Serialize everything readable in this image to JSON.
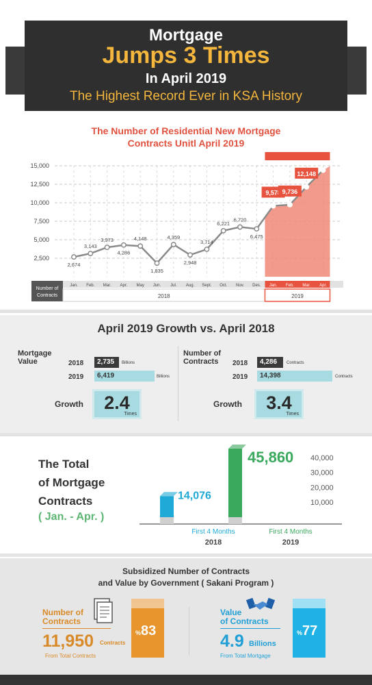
{
  "header": {
    "line1": "Mortgage",
    "line2": "Jumps 3 Times",
    "line3": "In April 2019",
    "line4": "The Highest Record Ever in KSA History"
  },
  "chart_data": {
    "type": "line",
    "title": "The Number of Residential New Mortgage Contracts Unitl April 2019",
    "xlabel": "Number of Contracts",
    "ylabel": "",
    "ylim": [
      0,
      15000
    ],
    "yticks": [
      2500,
      5000,
      7500,
      10000,
      12500,
      15000
    ],
    "ytick_labels": [
      "2,500",
      "5,000",
      "7,500",
      "10,000",
      "12,500",
      "15,000"
    ],
    "categories": [
      "Jan.",
      "Feb.",
      "Mar.",
      "Apr.",
      "May",
      "Jun.",
      "Jul.",
      "Aug.",
      "Sept.",
      "Oct.",
      "Nov.",
      "Des.",
      "Jan.",
      "Feb.",
      "Mar.",
      "Apr."
    ],
    "groups": [
      {
        "label": "2018",
        "count": 12
      },
      {
        "label": "2019",
        "count": 4
      }
    ],
    "values": [
      2674,
      3143,
      3973,
      4286,
      4148,
      1835,
      4359,
      2948,
      3714,
      6221,
      6720,
      6475,
      9578,
      9736,
      12148,
      14398
    ],
    "value_labels": [
      "2,674",
      "3,143",
      "3,973",
      "4,286",
      "4,148",
      "1,835",
      "4,359",
      "2,948",
      "3,714",
      "6,221",
      "6,720",
      "6,475",
      "9,578",
      "9,736",
      "12,148",
      "14,398"
    ],
    "highlight_color": "#e8533f",
    "line_color": "#8a8a8a",
    "grid": true
  },
  "growth": {
    "title": "April 2019 Growth vs. April 2018",
    "value_label": "Mortgage Value",
    "value_unit": "Billions",
    "value_2018": "2,735",
    "value_2019": "6,419",
    "contracts_label": "Number of Contracts",
    "contracts_unit": "Contracts",
    "contracts_2018": "4,286",
    "contracts_2019": "14,398",
    "year_2018": "2018",
    "year_2019": "2019",
    "growth_label": "Growth",
    "growth_unit": "Times",
    "growth_value": "2.4",
    "growth_contracts": "3.4"
  },
  "total": {
    "title_l1": "The Total",
    "title_l2": "of Mortgage",
    "title_l3": "Contracts",
    "subtitle": "( Jan. - Apr. )",
    "chart_data": {
      "type": "bar",
      "categories": [
        "2018",
        "2019"
      ],
      "period_label": "First 4 Months",
      "values": [
        14076,
        45860
      ],
      "value_labels": [
        "14,076",
        "45,860"
      ],
      "yticks": [
        "10,000",
        "20,000",
        "30,000",
        "40,000"
      ],
      "colors": [
        "#1fa9d6",
        "#3aa85d"
      ]
    }
  },
  "subsidized": {
    "title_l1": "Subsidized Number of Contracts",
    "title_l2": "and Value by Government ( Sakani Program )",
    "contracts_label_l1": "Number of",
    "contracts_label_l2": "Contracts",
    "contracts_value": "11,950",
    "contracts_unit": "Contracts",
    "contracts_from": "From Total Contracts",
    "contracts_pct": "83",
    "contracts_pct_sign": "%",
    "value_label_l1": "Value",
    "value_label_l2": "of Contracts",
    "value_value": "4.9",
    "value_unit": "Billions",
    "value_from": "From Total Mortgage",
    "value_pct": "77",
    "value_pct_sign": "%",
    "orange": "#e7952c",
    "blue": "#1fb2e6"
  }
}
